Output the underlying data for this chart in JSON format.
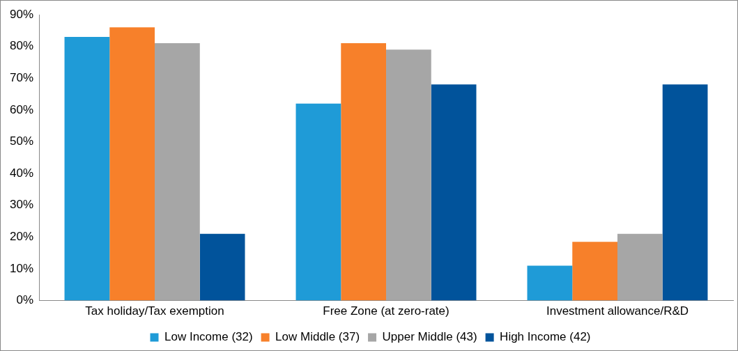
{
  "chart_data": {
    "type": "bar",
    "categories": [
      "Tax holiday/Tax exemption",
      "Free Zone (at zero-rate)",
      "Investment allowance/R&D"
    ],
    "series": [
      {
        "name": "Low Income (32)",
        "color": "#1f9bd7",
        "values": [
          83,
          62,
          11
        ]
      },
      {
        "name": "Low Middle (37)",
        "color": "#f7802a",
        "values": [
          86,
          81,
          18.5
        ]
      },
      {
        "name": "Upper Middle (43)",
        "color": "#a6a6a6",
        "values": [
          81,
          79,
          21
        ]
      },
      {
        "name": "High Income (42)",
        "color": "#01539b",
        "values": [
          21,
          68,
          68
        ]
      }
    ],
    "ylim": [
      0,
      90
    ],
    "yticks": [
      {
        "value": 0,
        "label": "0%"
      },
      {
        "value": 10,
        "label": "10%"
      },
      {
        "value": 20,
        "label": "20%"
      },
      {
        "value": 30,
        "label": "30%"
      },
      {
        "value": 40,
        "label": "40%"
      },
      {
        "value": 50,
        "label": "50%"
      },
      {
        "value": 60,
        "label": "60%"
      },
      {
        "value": 70,
        "label": "70%"
      },
      {
        "value": 80,
        "label": "80%"
      },
      {
        "value": 90,
        "label": "90%"
      }
    ],
    "grid": false,
    "legend": "bottom"
  }
}
